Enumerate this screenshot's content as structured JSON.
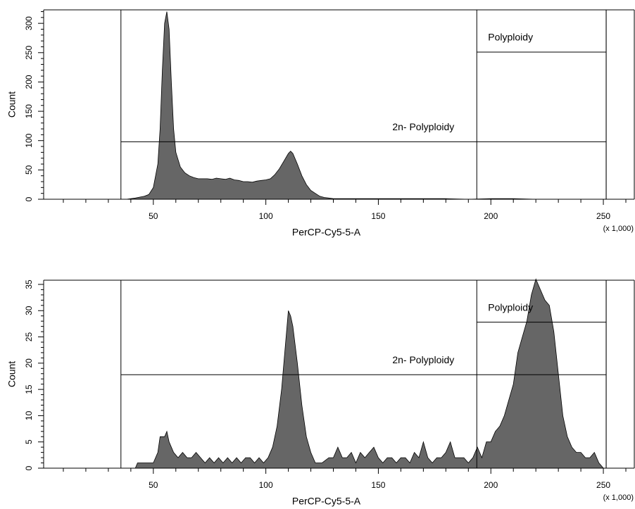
{
  "chart_data": [
    {
      "type": "area",
      "x_label": "PerCP-Cy5-5-A",
      "y_label": "Count",
      "x_unit_note": "(x 1,000)",
      "xlim": [
        1.25,
        263.75
      ],
      "xticks": [
        50,
        100,
        150,
        200,
        250
      ],
      "xminorticks": [
        10,
        20,
        30,
        40,
        60,
        70,
        80,
        90,
        110,
        120,
        130,
        140,
        160,
        170,
        180,
        190,
        210,
        220,
        230,
        240,
        260
      ],
      "ylim": [
        0,
        323
      ],
      "yticks": [
        0,
        50,
        100,
        150,
        200,
        250,
        300
      ],
      "yminorticks": [
        10,
        20,
        30,
        40,
        60,
        70,
        80,
        90,
        110,
        120,
        130,
        140,
        160,
        170,
        180,
        190,
        210,
        220,
        230,
        240,
        260,
        270,
        280,
        290,
        310,
        320
      ],
      "color": "#666666",
      "x": [
        38,
        42,
        46,
        48,
        50,
        52,
        53,
        54,
        55,
        56,
        57,
        58,
        59,
        60,
        62,
        64,
        66,
        68,
        70,
        72,
        74,
        76,
        78,
        80,
        82,
        84,
        86,
        88,
        90,
        92,
        94,
        96,
        98,
        100,
        102,
        104,
        106,
        108,
        110,
        111,
        112,
        114,
        116,
        118,
        120,
        122,
        124,
        126,
        128,
        130,
        140,
        150,
        160,
        170,
        180,
        190,
        200,
        210,
        220
      ],
      "values": [
        0,
        2,
        5,
        8,
        20,
        60,
        120,
        220,
        300,
        320,
        290,
        200,
        120,
        80,
        55,
        45,
        40,
        37,
        35,
        35,
        35,
        34,
        36,
        35,
        34,
        36,
        33,
        32,
        30,
        30,
        29,
        31,
        32,
        33,
        35,
        42,
        52,
        65,
        78,
        82,
        78,
        60,
        40,
        25,
        15,
        10,
        5,
        3,
        2,
        1,
        1,
        1,
        1,
        1,
        1,
        0,
        1,
        1,
        0
      ],
      "gates": [
        {
          "label": "2n- Polyploidy",
          "range": [
            35.6,
            251.25
          ],
          "level": 98
        },
        {
          "label": "Polyploidy",
          "range": [
            193.75,
            251.25
          ],
          "level": 251
        }
      ]
    },
    {
      "type": "area",
      "x_label": "PerCP-Cy5-5-A",
      "y_label": "Count",
      "x_unit_note": "(x 1,000)",
      "xlim": [
        1.25,
        263.75
      ],
      "xticks": [
        50,
        100,
        150,
        200,
        250
      ],
      "xminorticks": [
        10,
        20,
        30,
        40,
        60,
        70,
        80,
        90,
        110,
        120,
        130,
        140,
        160,
        170,
        180,
        190,
        210,
        220,
        230,
        240,
        260
      ],
      "ylim": [
        0,
        35.8
      ],
      "yticks": [
        0,
        5,
        10,
        15,
        20,
        25,
        30,
        35
      ],
      "yminorticks": [
        1,
        2,
        3,
        4,
        6,
        7,
        8,
        9,
        11,
        12,
        13,
        14,
        16,
        17,
        18,
        19,
        21,
        22,
        23,
        24,
        26,
        27,
        28,
        29,
        31,
        32,
        33,
        34
      ],
      "color": "#666666",
      "x": [
        42,
        43,
        50,
        52,
        53,
        55,
        56,
        57,
        59,
        61,
        63,
        65,
        67,
        69,
        71,
        73,
        75,
        77,
        79,
        81,
        83,
        85,
        87,
        89,
        91,
        93,
        95,
        97,
        99,
        101,
        103,
        105,
        107,
        109,
        110,
        111,
        112,
        114,
        116,
        118,
        120,
        122,
        125,
        128,
        130,
        132,
        134,
        136,
        138,
        140,
        142,
        144,
        146,
        148,
        150,
        152,
        154,
        156,
        158,
        160,
        162,
        164,
        166,
        168,
        170,
        172,
        174,
        176,
        178,
        180,
        182,
        184,
        186,
        188,
        190,
        192,
        194,
        196,
        198,
        200,
        202,
        204,
        206,
        208,
        210,
        212,
        214,
        216,
        218,
        220,
        222,
        224,
        226,
        228,
        230,
        232,
        234,
        236,
        238,
        240,
        242,
        244,
        246,
        248,
        250
      ],
      "values": [
        0,
        1,
        1,
        3,
        6,
        6,
        7,
        5,
        3,
        2,
        3,
        2,
        2,
        3,
        2,
        1,
        2,
        1,
        2,
        1,
        2,
        1,
        2,
        1,
        2,
        2,
        1,
        2,
        1,
        2,
        4,
        8,
        15,
        25,
        30,
        29,
        27,
        20,
        12,
        6,
        3,
        1,
        1,
        2,
        2,
        4,
        2,
        2,
        3,
        1,
        3,
        2,
        3,
        4,
        2,
        1,
        2,
        2,
        1,
        2,
        2,
        1,
        3,
        2,
        5,
        2,
        1,
        2,
        2,
        3,
        5,
        2,
        2,
        2,
        1,
        2,
        4,
        2,
        5,
        5,
        7,
        8,
        10,
        13,
        16,
        22,
        25,
        28,
        33,
        36,
        34,
        32,
        31,
        26,
        18,
        10,
        6,
        4,
        3,
        3,
        2,
        2,
        3,
        1,
        0
      ],
      "gates": [
        {
          "label": "2n- Polyploidy",
          "range": [
            35.6,
            251.25
          ],
          "level": 17.8
        },
        {
          "label": "Polyploidy",
          "range": [
            193.75,
            251.25
          ],
          "level": 27.8
        }
      ]
    }
  ]
}
